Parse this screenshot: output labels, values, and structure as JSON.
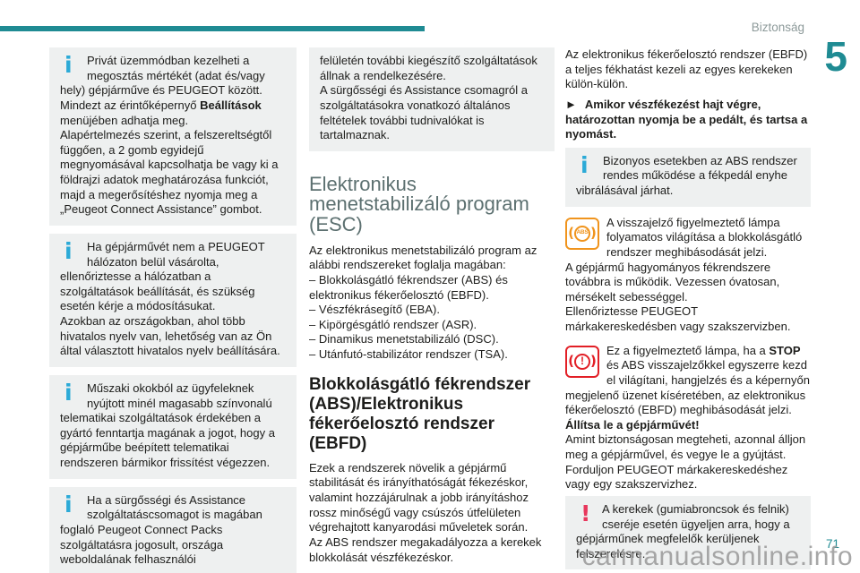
{
  "page": {
    "header": "Biztonság",
    "chapter_number": "5",
    "page_number": "71",
    "watermark": "carmanualsonline.info"
  },
  "colors": {
    "teal_accent": "#1f8b93",
    "heading_gray": "#5c7070",
    "box_background": "#eef0f0",
    "info_icon_blue": "#2baad7",
    "abs_lamp_orange": "#f0941d",
    "brake_lamp_red": "#e21f26",
    "warning_icon_red": "#e8375c",
    "watermark_gray": "#9b9b9b"
  },
  "icons": {
    "info_glyph": "i",
    "warn_glyph": "!",
    "abs_label": "ABS",
    "brake_glyph": "!",
    "paren_open": "(",
    "paren_close": ")"
  },
  "column1": {
    "note1_part1": "Privát üzemmódban kezelheti a megosztás mértékét (adat és/vagy hely) gépjárműve és PEUGEOT között.\nMindezt az érintőképernyő ",
    "note1_bold": "Beállítások",
    "note1_part2": " menüjében adhatja meg.\nAlapértelmezés szerint, a felszereltségtől függően, a 2 gomb egyidejű megnyomásával kapcsolhatja be vagy ki a földrajzi adatok meghatározása funkciót, majd a megerősítéshez nyomja meg a „Peugeot Connect Assistance” gombot.",
    "note2": "Ha gépjárművét nem a PEUGEOT hálózaton belül vásárolta, ellenőriztesse a hálózatban a szolgáltatások beállítását, és szükség esetén kérje a módosításukat.\nAzokban az országokban, ahol több hivatalos nyelv van, lehetőség van az Ön által választott hivatalos nyelv beállítására.",
    "note3": "Műszaki okokból az ügyfeleknek nyújtott minél magasabb színvonalú telematikai szolgáltatások érdekében a gyártó fenntartja magának a jogot, hogy a gépjárműbe beépített telematikai rendszeren bármikor frissítést végezzen.",
    "note4": "Ha a sürgősségi és Assistance szolgáltatáscsomagot is magában foglaló Peugeot Connect Packs szolgáltatásra jogosult, országa weboldalának felhasználói"
  },
  "column2": {
    "note5": "felületén további kiegészítő szolgáltatások állnak a rendelkezésére.\nA sürgősségi és Assistance csomagról a szolgáltatásokra vonatkozó általános feltételek további tudnivalókat is tartalmaznak.",
    "esc_heading": "Elektronikus menetstabilizáló program (ESC)",
    "esc_body": "Az elektronikus menetstabilizáló program az alábbi rendszereket foglalja magában:\n– Blokkolásgátló fékrendszer (ABS) és elektronikus fékerőelosztó (EBFD).\n– Vészfékrásegítő (EBA).\n– Kipörgésgátló rendszer (ASR).\n– Dinamikus menetstabilizáló (DSC).\n– Utánfutó-stabilizátor rendszer (TSA).",
    "abs_heading": "Blokkolásgátló fékrendszer (ABS)/Elektronikus fékerőelosztó rendszer (EBFD)",
    "abs_body": "Ezek a rendszerek növelik a gépjármű stabilitását és irányíthatóságát fékezéskor, valamint hozzájárulnak a jobb irányításhoz rossz minőségű vagy csúszós útfelületen végrehajtott kanyarodási műveletek során.\nAz ABS rendszer megakadályozza a kerekek blokkolását vészfékezéskor."
  },
  "column3": {
    "intro": "Az elektronikus fékerőelosztó rendszer (EBFD) a teljes fékhatást kezeli az egyes kerekeken külön-külön.",
    "instruction_arrow": "►",
    "instruction_text": "Amikor vészfékezést hajt végre, határozottan nyomja be a pedált, és tartsa a nyomást.",
    "note6": "Bizonyos esetekben az ABS rendszer rendes működése a fékpedál enyhe vibrálásával járhat.",
    "abs_lamp_text": "A visszajelző figyelmeztető lámpa folyamatos világítása a blokkolásgátló rendszer meghibásodását jelzi.\nA gépjármű hagyományos fékrendszere továbbra is működik. Vezessen óvatosan, mérsékelt sebességgel.\nEllenőriztesse PEUGEOT márkakereskedésben vagy szakszervizben.",
    "brake_part1": "Ez a figyelmeztető lámpa, ha a ",
    "brake_bold_stop": "STOP",
    "brake_part2": " és ABS visszajelzőkkel egyszerre kezd el világítani, hangjelzés és a képernyőn megjelenő üzenet kíséretében, az elektronikus fékerőelosztó (EBFD) meghibásodását jelzi.\n",
    "brake_bold_stop_vehicle": "Állítsa le a gépjárművét!",
    "brake_part3": "\nAmint biztonságosan megteheti, azonnal álljon meg a gépjárművel, és vegye le a gyújtást.\nForduljon PEUGEOT márkakereskedéshez vagy egy szakszervizhez.",
    "warn_text": "A kerekek (gumiabroncsok és felnik) cseréje esetén ügyeljen arra, hogy a gépjárműnek megfelelők kerüljenek felszerelésre."
  }
}
